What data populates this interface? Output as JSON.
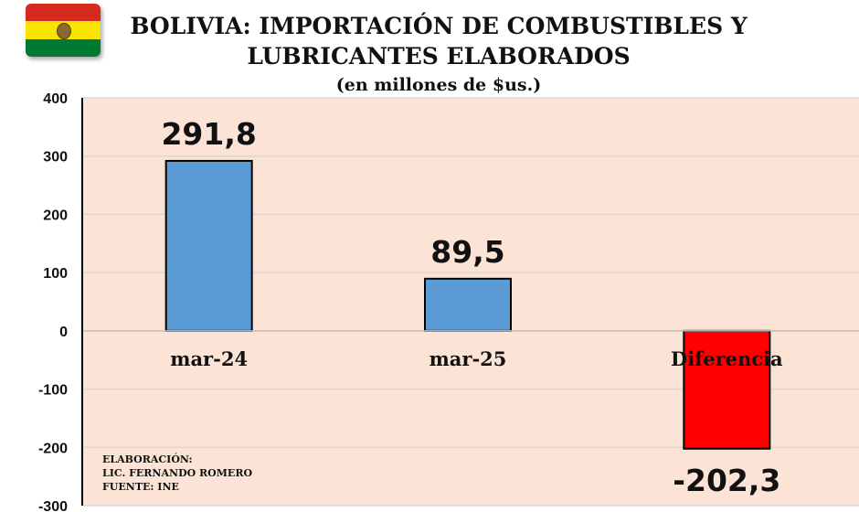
{
  "header": {
    "title_line1": "BOLIVIA: IMPORTACIÓN DE COMBUSTIBLES Y",
    "title_line2": "LUBRICANTES ELABORADOS",
    "subtitle": "(en millones de $us.)"
  },
  "flag": {
    "colors": [
      "#d52b1e",
      "#f9e300",
      "#007a33"
    ]
  },
  "credits": {
    "line1": "ELABORACIÓN:",
    "line2": "LIC. FERNANDO ROMERO",
    "line3": "FUENTE: INE"
  },
  "chart_data": {
    "type": "bar",
    "categories": [
      "mar-24",
      "mar-25",
      "Diferencia"
    ],
    "values": [
      291.8,
      89.5,
      -202.3
    ],
    "data_labels": [
      "291,8",
      "89,5",
      "-202,3"
    ],
    "bar_colors": [
      "#5b9bd5",
      "#5b9bd5",
      "#ff0000"
    ],
    "ylim": [
      -300,
      400
    ],
    "yticks": [
      400,
      300,
      200,
      100,
      0,
      -100,
      -200,
      -300
    ],
    "ytick_labels": [
      "400",
      "300",
      "200",
      "100",
      "0",
      "-100",
      "-200",
      "-300"
    ],
    "grid": true,
    "plot_background": "#fbe4d5"
  }
}
